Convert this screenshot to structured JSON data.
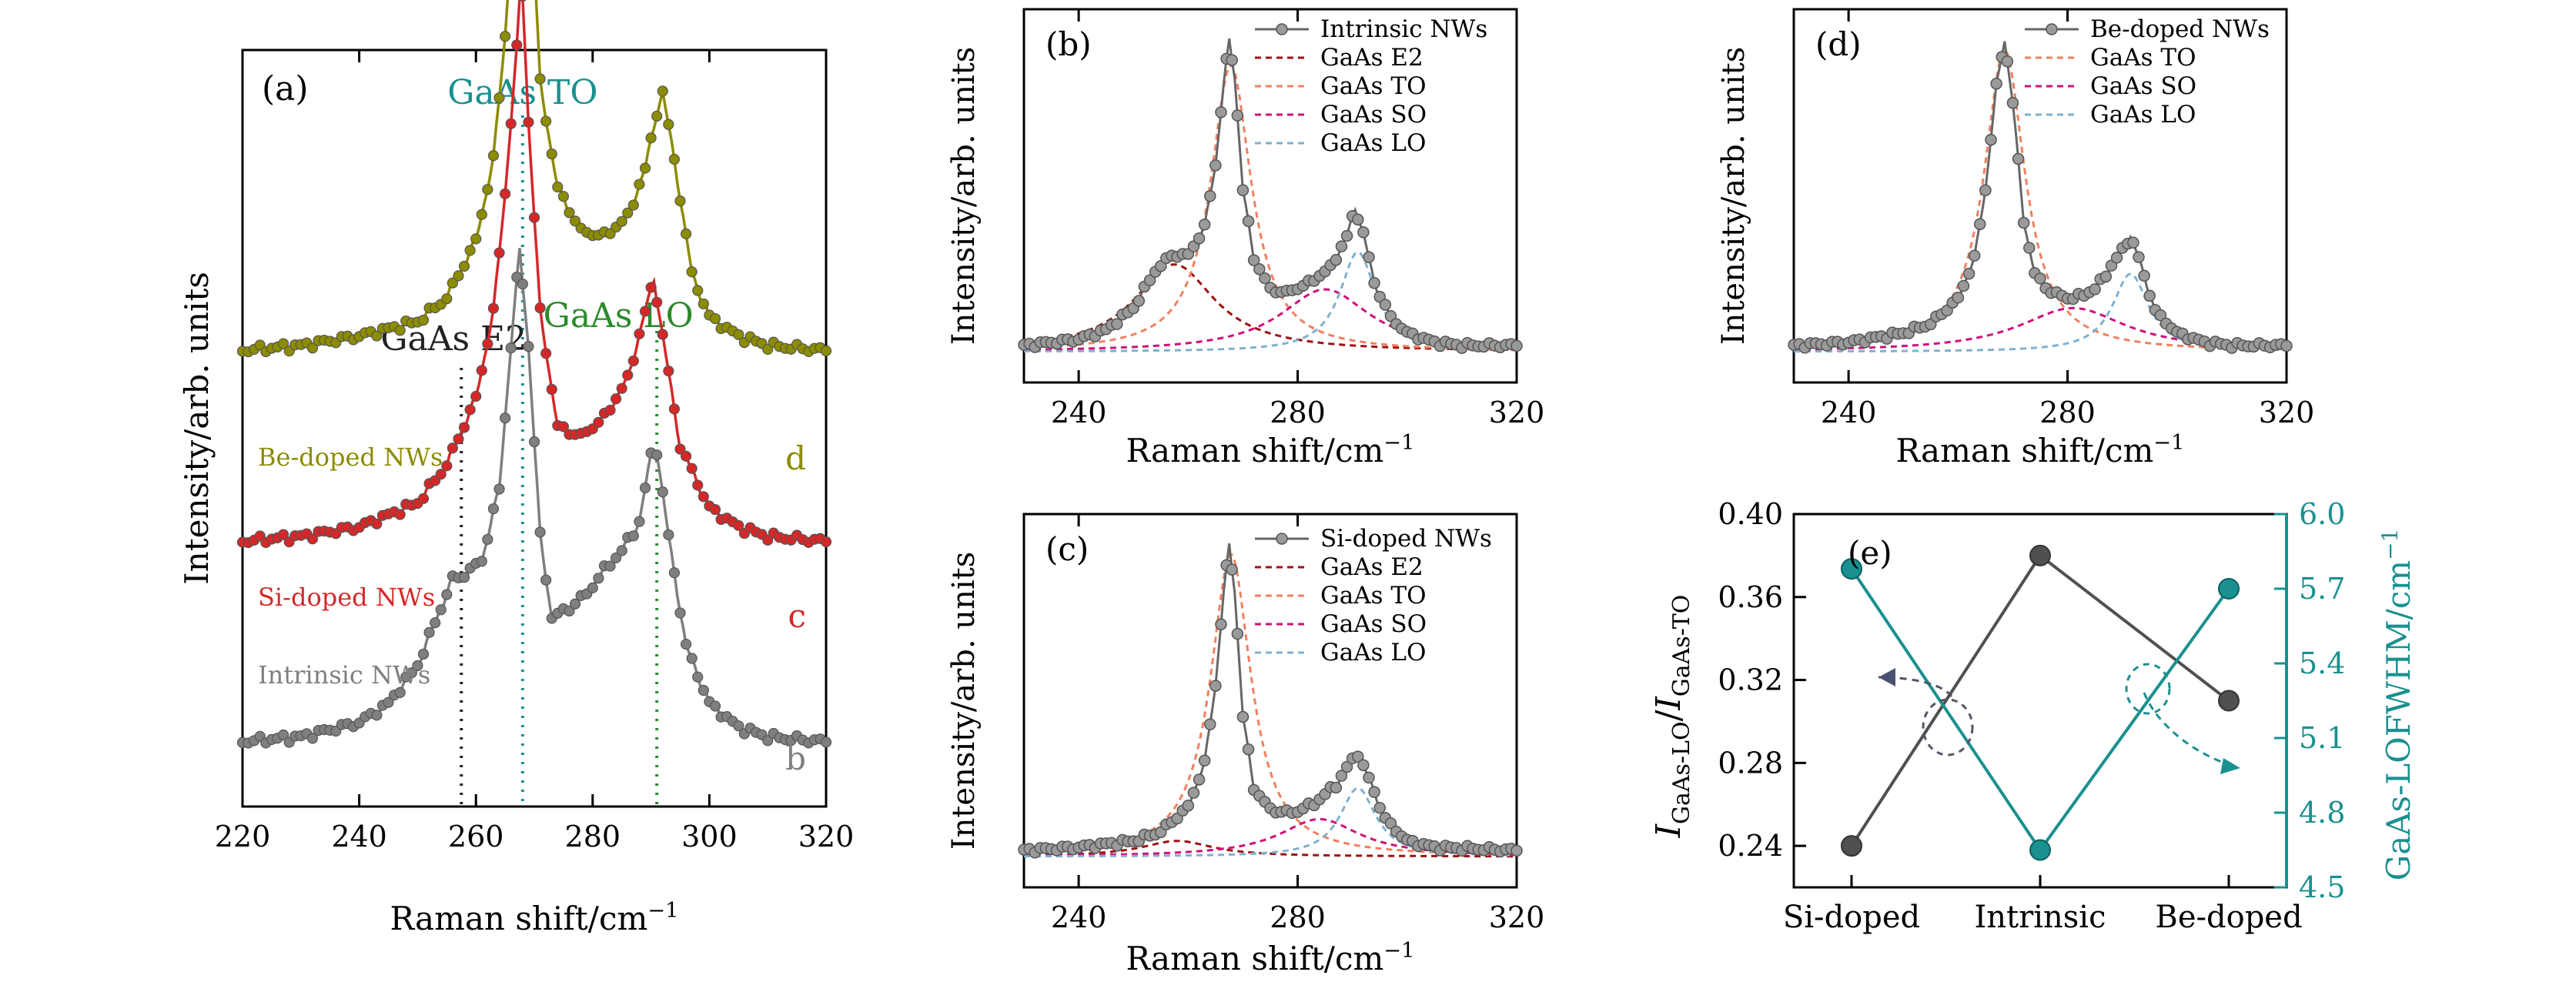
{
  "figure": {
    "x_axis_label": "Raman shift/cm",
    "x_axis_label_sup": "−1",
    "y_axis_label": "Intensity/arb. units"
  },
  "colors": {
    "intrinsic": "#7f7f7f",
    "si_doped": "#d62728",
    "be_doped": "#8c8c00",
    "E2": "#a01010",
    "TO": "#f08060",
    "SO": "#d0107a",
    "LO": "#80b0d0",
    "teal": "#1a9090",
    "dark": "#505050",
    "green": "#2b8a2b"
  },
  "chart_data": [
    {
      "panel": "(a)",
      "type": "line",
      "xlabel": "Raman shift/cm−1",
      "ylabel": "Intensity/arb. units",
      "xlim": [
        220,
        320
      ],
      "xticks": [
        220,
        240,
        260,
        280,
        300,
        320
      ],
      "reference_lines": [
        {
          "label": "GaAs E2",
          "x": 257.5,
          "color": "#222222"
        },
        {
          "label": "GaAs TO",
          "x": 268,
          "color": "#1a9090"
        },
        {
          "label": "GaAs LO",
          "x": 291,
          "color": "#2b8a2b"
        }
      ],
      "series": [
        {
          "name": "Intrinsic NWs",
          "letter": "b",
          "offset": 0.0,
          "points": [
            [
              220,
              0.02
            ],
            [
              230,
              0.03
            ],
            [
              240,
              0.06
            ],
            [
              245,
              0.1
            ],
            [
              250,
              0.18
            ],
            [
              254,
              0.3
            ],
            [
              256,
              0.36
            ],
            [
              258,
              0.37
            ],
            [
              261,
              0.4
            ],
            [
              264,
              0.55
            ],
            [
              266,
              0.85
            ],
            [
              267.5,
              1.05
            ],
            [
              269,
              0.85
            ],
            [
              271,
              0.45
            ],
            [
              273,
              0.28
            ],
            [
              276,
              0.3
            ],
            [
              279,
              0.33
            ],
            [
              282,
              0.38
            ],
            [
              285,
              0.42
            ],
            [
              288,
              0.48
            ],
            [
              290,
              0.62
            ],
            [
              291,
              0.63
            ],
            [
              293,
              0.45
            ],
            [
              296,
              0.22
            ],
            [
              300,
              0.1
            ],
            [
              305,
              0.05
            ],
            [
              310,
              0.03
            ],
            [
              320,
              0.02
            ]
          ]
        },
        {
          "name": "Si-doped NWs",
          "letter": "c",
          "offset": 0.42,
          "points": [
            [
              220,
              0.02
            ],
            [
              230,
              0.03
            ],
            [
              240,
              0.05
            ],
            [
              250,
              0.1
            ],
            [
              255,
              0.18
            ],
            [
              260,
              0.32
            ],
            [
              263,
              0.5
            ],
            [
              265,
              0.75
            ],
            [
              267,
              1.05
            ],
            [
              267.8,
              1.22
            ],
            [
              269,
              0.9
            ],
            [
              271,
              0.5
            ],
            [
              274,
              0.26
            ],
            [
              278,
              0.24
            ],
            [
              282,
              0.28
            ],
            [
              286,
              0.36
            ],
            [
              289,
              0.5
            ],
            [
              290.5,
              0.57
            ],
            [
              292,
              0.45
            ],
            [
              295,
              0.22
            ],
            [
              300,
              0.09
            ],
            [
              305,
              0.05
            ],
            [
              310,
              0.03
            ],
            [
              320,
              0.02
            ]
          ]
        },
        {
          "name": "Be-doped NWs",
          "letter": "d",
          "offset": 0.82,
          "points": [
            [
              220,
              0.02
            ],
            [
              230,
              0.03
            ],
            [
              240,
              0.05
            ],
            [
              250,
              0.08
            ],
            [
              255,
              0.13
            ],
            [
              260,
              0.25
            ],
            [
              263,
              0.42
            ],
            [
              265,
              0.68
            ],
            [
              267,
              1.05
            ],
            [
              268,
              1.3
            ],
            [
              269.5,
              0.95
            ],
            [
              271,
              0.58
            ],
            [
              274,
              0.36
            ],
            [
              278,
              0.27
            ],
            [
              282,
              0.26
            ],
            [
              286,
              0.3
            ],
            [
              289,
              0.4
            ],
            [
              291,
              0.52
            ],
            [
              292,
              0.56
            ],
            [
              294,
              0.42
            ],
            [
              297,
              0.18
            ],
            [
              300,
              0.09
            ],
            [
              305,
              0.05
            ],
            [
              310,
              0.03
            ],
            [
              320,
              0.02
            ]
          ]
        }
      ]
    },
    {
      "panel": "(b)",
      "type": "line",
      "xlabel": "Raman shift/cm−1",
      "ylabel": "Intensity/arb. units",
      "xlim": [
        230,
        320
      ],
      "xticks": [
        240,
        280,
        320
      ],
      "series": [
        {
          "name": "Intrinsic NWs",
          "kind": "data",
          "points": [
            [
              230,
              0.02
            ],
            [
              240,
              0.04
            ],
            [
              245,
              0.07
            ],
            [
              250,
              0.14
            ],
            [
              254,
              0.26
            ],
            [
              257,
              0.31
            ],
            [
              260,
              0.31
            ],
            [
              263,
              0.4
            ],
            [
              265,
              0.6
            ],
            [
              266.5,
              0.86
            ],
            [
              267.5,
              1.0
            ],
            [
              268.5,
              0.88
            ],
            [
              270,
              0.52
            ],
            [
              272,
              0.3
            ],
            [
              275,
              0.2
            ],
            [
              278,
              0.19
            ],
            [
              282,
              0.22
            ],
            [
              286,
              0.27
            ],
            [
              289,
              0.37
            ],
            [
              290.5,
              0.46
            ],
            [
              292,
              0.38
            ],
            [
              294,
              0.22
            ],
            [
              297,
              0.11
            ],
            [
              300,
              0.06
            ],
            [
              305,
              0.03
            ],
            [
              310,
              0.02
            ],
            [
              320,
              0.02
            ]
          ]
        },
        {
          "name": "GaAs E2",
          "kind": "fit",
          "center": 257.5,
          "width": 9,
          "height": 0.28
        },
        {
          "name": "GaAs TO",
          "kind": "fit",
          "center": 267.8,
          "width": 4.5,
          "height": 0.92
        },
        {
          "name": "GaAs SO",
          "kind": "fit",
          "center": 285,
          "width": 10,
          "height": 0.2
        },
        {
          "name": "GaAs LO",
          "kind": "fit",
          "center": 291,
          "width": 4,
          "height": 0.32
        }
      ]
    },
    {
      "panel": "(c)",
      "type": "line",
      "xlabel": "Raman shift/cm−1",
      "ylabel": "Intensity/arb. units",
      "xlim": [
        230,
        320
      ],
      "xticks": [
        240,
        280,
        320
      ],
      "series": [
        {
          "name": "Si-doped NWs",
          "kind": "data",
          "points": [
            [
              230,
              0.02
            ],
            [
              240,
              0.03
            ],
            [
              250,
              0.05
            ],
            [
              255,
              0.08
            ],
            [
              260,
              0.16
            ],
            [
              263,
              0.3
            ],
            [
              265,
              0.55
            ],
            [
              266.5,
              0.85
            ],
            [
              267.5,
              1.0
            ],
            [
              268.5,
              0.85
            ],
            [
              270,
              0.45
            ],
            [
              272,
              0.22
            ],
            [
              275,
              0.15
            ],
            [
              279,
              0.14
            ],
            [
              283,
              0.17
            ],
            [
              287,
              0.23
            ],
            [
              289.5,
              0.3
            ],
            [
              291,
              0.33
            ],
            [
              293,
              0.25
            ],
            [
              296,
              0.12
            ],
            [
              300,
              0.05
            ],
            [
              305,
              0.03
            ],
            [
              320,
              0.02
            ]
          ]
        },
        {
          "name": "GaAs E2",
          "kind": "fit",
          "center": 258,
          "width": 8,
          "height": 0.05
        },
        {
          "name": "GaAs TO",
          "kind": "fit",
          "center": 267.8,
          "width": 4.5,
          "height": 0.97
        },
        {
          "name": "GaAs SO",
          "kind": "fit",
          "center": 284,
          "width": 9,
          "height": 0.12
        },
        {
          "name": "GaAs LO",
          "kind": "fit",
          "center": 291,
          "width": 4,
          "height": 0.22
        }
      ]
    },
    {
      "panel": "(d)",
      "type": "line",
      "xlabel": "Raman shift/cm−1",
      "ylabel": "Intensity/arb. units",
      "xlim": [
        230,
        320
      ],
      "xticks": [
        240,
        280,
        320
      ],
      "series": [
        {
          "name": "Be-doped NWs",
          "kind": "data",
          "points": [
            [
              230,
              0.02
            ],
            [
              240,
              0.03
            ],
            [
              250,
              0.06
            ],
            [
              255,
              0.09
            ],
            [
              260,
              0.17
            ],
            [
              263,
              0.3
            ],
            [
              265,
              0.52
            ],
            [
              267,
              0.85
            ],
            [
              268.5,
              1.0
            ],
            [
              270,
              0.8
            ],
            [
              272,
              0.42
            ],
            [
              274,
              0.25
            ],
            [
              277,
              0.19
            ],
            [
              281,
              0.17
            ],
            [
              285,
              0.2
            ],
            [
              289,
              0.3
            ],
            [
              291.5,
              0.37
            ],
            [
              293,
              0.3
            ],
            [
              296,
              0.13
            ],
            [
              300,
              0.06
            ],
            [
              305,
              0.03
            ],
            [
              310,
              0.02
            ],
            [
              320,
              0.02
            ]
          ]
        },
        {
          "name": "GaAs TO",
          "kind": "fit",
          "center": 268.5,
          "width": 4.5,
          "height": 0.97
        },
        {
          "name": "GaAs SO",
          "kind": "fit",
          "center": 281,
          "width": 12,
          "height": 0.14
        },
        {
          "name": "GaAs LO",
          "kind": "fit",
          "center": 291.5,
          "width": 4,
          "height": 0.25
        }
      ]
    },
    {
      "panel": "(e)",
      "type": "line",
      "categories": [
        "Si-doped",
        "Intrinsic",
        "Be-doped"
      ],
      "ylabel": "I_GaAs-LO / I_GaAs-TO",
      "ylim": [
        0.22,
        0.4
      ],
      "yticks": [
        0.24,
        0.28,
        0.32,
        0.36,
        0.4
      ],
      "y2label": "GaAs-LOFWHM/cm−1",
      "y2lim": [
        4.5,
        6.0
      ],
      "y2ticks": [
        4.5,
        4.8,
        5.1,
        5.4,
        5.7,
        6.0
      ],
      "series": [
        {
          "name": "I_GaAs-LO/I_GaAs-TO",
          "axis": "left",
          "values": [
            0.24,
            0.38,
            0.31
          ]
        },
        {
          "name": "GaAs-LOFWHM",
          "axis": "right",
          "values": [
            5.78,
            4.65,
            5.7
          ]
        }
      ]
    }
  ],
  "labels": {
    "a_panel": "(a)",
    "b_panel": "(b)",
    "c_panel": "(c)",
    "d_panel": "(d)",
    "e_panel": "(e)",
    "e2": "GaAs E2",
    "to": "GaAs TO",
    "lo": "GaAs LO",
    "so": "GaAs SO",
    "e_left_label": "I",
    "e_left_sub1": "GaAs-LO",
    "e_left_sub2": "GaAs-TO",
    "e_right_label": "GaAs-LOFWHM/cm",
    "e_right_sup": "−1"
  }
}
